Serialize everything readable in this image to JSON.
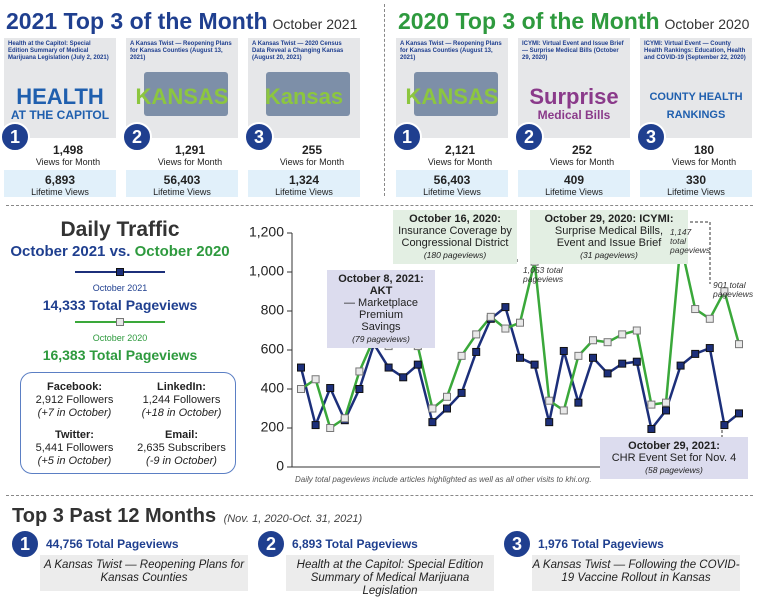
{
  "top2021": {
    "title": "2021 Top 3 of the Month",
    "period": "October 2021",
    "color": "#1f3f8f",
    "items": [
      {
        "rank": "1",
        "headline": "Health at the Capitol: Special Edition Summary of Medical Marijuana Legislation (July 2, 2021)",
        "art": "HEALTH",
        "art2": "AT THE CAPITOL",
        "views": "1,498",
        "views_label": "Views for Month",
        "lifetime": "6,893",
        "lifetime_label": "Lifetime Views"
      },
      {
        "rank": "2",
        "headline": "A Kansas Twist — Reopening Plans for Kansas Counties (August 13, 2021)",
        "art": "KANSAS",
        "art2": null,
        "views": "1,291",
        "views_label": "Views for Month",
        "lifetime": "56,403",
        "lifetime_label": "Lifetime Views"
      },
      {
        "rank": "3",
        "headline": "A Kansas Twist — 2020 Census Data Reveal a Changing Kansas (August 20, 2021)",
        "art": "Kansas",
        "art2": null,
        "views": "255",
        "views_label": "Views for Month",
        "lifetime": "1,324",
        "lifetime_label": "Lifetime Views"
      }
    ]
  },
  "top2020": {
    "title": "2020 Top 3 of the Month",
    "period": "October 2020",
    "color": "#2e9a3e",
    "items": [
      {
        "rank": "1",
        "headline": "A Kansas Twist — Reopening Plans for Kansas Counties (August 13, 2021)",
        "art": "KANSAS",
        "art2": null,
        "views": "2,121",
        "views_label": "Views for Month",
        "lifetime": "56,403",
        "lifetime_label": "Lifetime Views"
      },
      {
        "rank": "2",
        "headline": "ICYMI: Virtual Event and Issue Brief — Surprise Medical Bills (October 29, 2020)",
        "art": "Surprise",
        "art2": "Medical Bills",
        "views": "252",
        "views_label": "Views for Month",
        "lifetime": "409",
        "lifetime_label": "Lifetime Views"
      },
      {
        "rank": "3",
        "headline": "ICYMI: Virtual Event — County Health Rankings: Education, Health and COVID-19 (September 22, 2020)",
        "art": "COUNTY HEALTH",
        "art2": "RANKINGS",
        "views": "180",
        "views_label": "Views for Month",
        "lifetime": "330",
        "lifetime_label": "Lifetime Views"
      }
    ]
  },
  "traffic": {
    "title": "Daily Traffic",
    "sub_a": "October 2021",
    "sub_vs": "vs.",
    "sub_b": "October 2020",
    "total_a": "14,333 Total Pageviews",
    "total_b": "16,383 Total Pageviews",
    "social": [
      {
        "name": "Facebook:",
        "count": "2,912 Followers",
        "change": "(+7 in October)"
      },
      {
        "name": "LinkedIn:",
        "count": "1,244 Followers",
        "change": "(+18 in October)"
      },
      {
        "name": "Twitter:",
        "count": "5,441 Followers",
        "change": "(+5 in October)"
      },
      {
        "name": "Email:",
        "count": "2,635 Subscribers",
        "change": "(-9 in October)"
      }
    ]
  },
  "chart_data": {
    "type": "line",
    "categories": [
      null,
      null,
      null,
      null,
      null,
      null,
      null,
      null,
      null,
      null,
      null,
      null,
      null,
      null,
      null,
      null,
      null,
      null,
      null,
      null,
      null,
      null,
      null,
      null,
      null,
      null,
      null,
      null,
      null,
      null,
      null
    ],
    "series": [
      {
        "name": "October 2021",
        "color": "#1c2f7a",
        "marker": "filled",
        "values": [
          510,
          215,
          405,
          240,
          400,
          630,
          510,
          460,
          525,
          230,
          300,
          380,
          590,
          760,
          820,
          560,
          525,
          230,
          595,
          330,
          560,
          480,
          530,
          540,
          195,
          290,
          520,
          580,
          610,
          215,
          275
        ]
      },
      {
        "name": "October 2020",
        "color": "#3aa83a",
        "marker": "open",
        "values": [
          400,
          450,
          200,
          250,
          490,
          660,
          620,
          660,
          620,
          300,
          360,
          570,
          680,
          770,
          710,
          740,
          1053,
          340,
          290,
          570,
          650,
          640,
          680,
          700,
          320,
          330,
          1147,
          810,
          760,
          901,
          630
        ]
      }
    ],
    "ylim": [
      0,
      1200
    ],
    "yticks": [
      0,
      200,
      400,
      600,
      800,
      {
        "value": 1000,
        "label": "1,000"
      },
      {
        "value": 1200,
        "label": "1,200"
      }
    ],
    "grid": false,
    "note": "Daily total pageviews include articles highlighted as well as all other visits to khi.org.",
    "annotations": [
      {
        "lines": [
          "October 16, 2020:",
          "Insurance Coverage by",
          "Congressional District"
        ],
        "pageviews": "(180 pageviews)"
      },
      {
        "lines": [
          "October 29, 2020: ICYMI:",
          "Surprise Medical Bills,",
          "Event and Issue Brief"
        ],
        "pageviews": "(31 pageviews)"
      },
      {
        "lines": [
          "October 8, 2021: AKT",
          "— Marketplace Premium",
          "Savings"
        ],
        "pageviews": "(79 pageviews)"
      },
      {
        "lines": [
          "October 29, 2021:",
          "CHR Event Set for Nov. 4"
        ],
        "pageviews": "(58 pageviews)"
      }
    ],
    "point_labels": [
      {
        "lines": [
          "1,053 total",
          "pageviews"
        ]
      },
      {
        "lines": [
          "1,147",
          "total",
          "pageviews"
        ]
      },
      {
        "lines": [
          "901 total",
          "pageviews"
        ]
      }
    ]
  },
  "past12": {
    "title": "Top 3 Past 12 Months",
    "period": "(Nov. 1, 2020-Oct. 31, 2021)",
    "items": [
      {
        "rank": "1",
        "pageviews": "44,756 Total Pageviews",
        "headline": "A Kansas Twist — Reopening Plans for Kansas Counties"
      },
      {
        "rank": "2",
        "pageviews": "6,893 Total Pageviews",
        "headline": "Health at the Capitol: Special Edition Summary of Medical Marijuana Legislation"
      },
      {
        "rank": "3",
        "pageviews": "1,976 Total Pageviews",
        "headline": "A Kansas Twist — Following the COVID-19 Vaccine Rollout in Kansas"
      }
    ]
  }
}
